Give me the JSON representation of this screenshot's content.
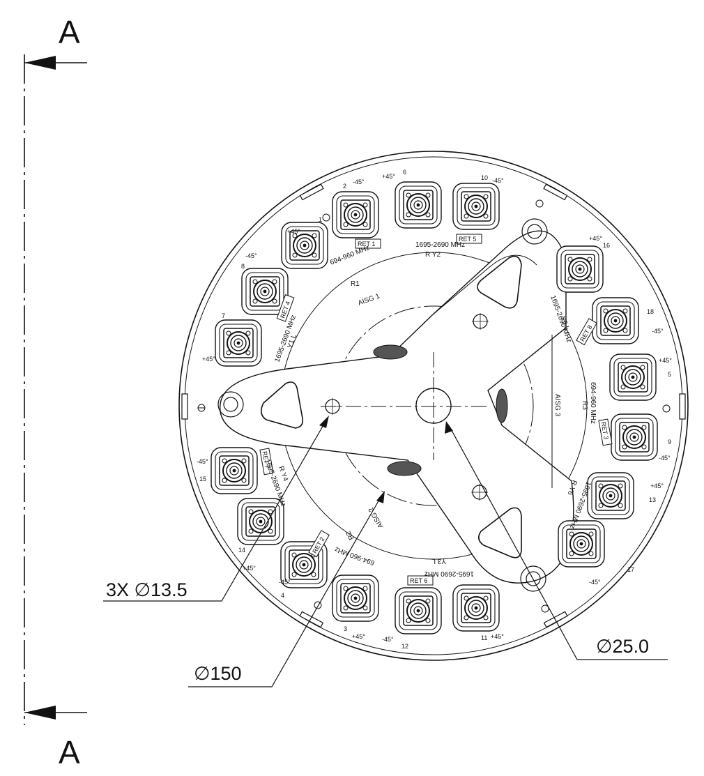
{
  "section": {
    "top_label": "A",
    "bottom_label": "A"
  },
  "dimensions": {
    "holes": "3X ∅13.5",
    "circle": "∅150",
    "center_hole": "∅25.0"
  },
  "port_numbers": [
    "1",
    "2",
    "3",
    "4",
    "5",
    "6",
    "7",
    "8",
    "9",
    "10",
    "11",
    "12",
    "13",
    "14",
    "15",
    "16",
    "17",
    "18"
  ],
  "polarizations": {
    "plus": "+45°",
    "minus": "-45°"
  },
  "ret_labels": [
    "RET 1",
    "RET 2",
    "RET 3",
    "RET 4",
    "RET 5",
    "RET 6",
    "RET 7",
    "RET 8"
  ],
  "band_labels": {
    "low": "694-960 MHz",
    "high": "1695-2690 MHz"
  },
  "aisg_labels": [
    "AISG 1",
    "AISG 2",
    "AISG 3"
  ],
  "sector_labels": {
    "r1": "R1",
    "r2": "R2",
    "r3": "R3",
    "y1_l": "Y1  L",
    "r_y2": "R  Y2",
    "y3_l": "Y3  L",
    "r_y4": "R  Y4",
    "y5_l": "Y5  L",
    "r_y6": "R  Y6"
  },
  "colors": {
    "line": "#111111",
    "background": "#ffffff"
  },
  "icons": [
    "arrow-left-icon",
    "connector-icon",
    "triangle-cutout-icon"
  ]
}
